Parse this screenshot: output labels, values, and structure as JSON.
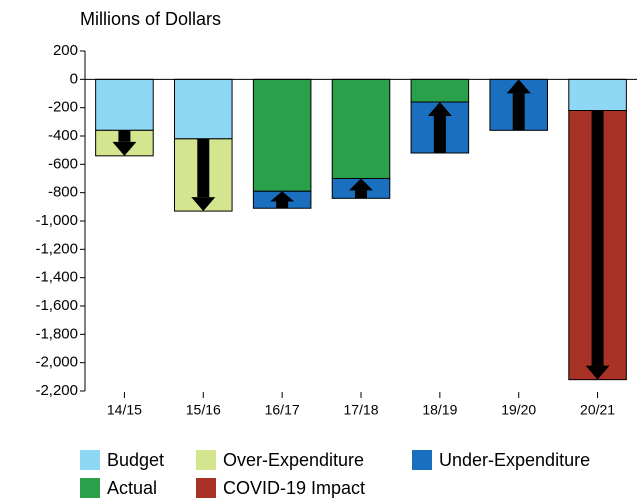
{
  "chart_data": {
    "type": "stacked_bar",
    "title": "Millions of Dollars",
    "categories": [
      "14/15",
      "15/16",
      "16/17",
      "17/18",
      "18/19",
      "19/20",
      "20/21"
    ],
    "series": [
      {
        "name": "Budget",
        "color": "#8fd8f5",
        "arrow": null,
        "values": [
          -360,
          -420,
          null,
          null,
          null,
          null,
          -220
        ]
      },
      {
        "name": "Actual",
        "color": "#2aa04a",
        "arrow": null,
        "values": [
          null,
          null,
          -790,
          -700,
          -160,
          null,
          null
        ]
      },
      {
        "name": "Over-Expenditure",
        "color": "#d3e58f",
        "arrow": "down",
        "values": [
          -180,
          -510,
          null,
          null,
          null,
          null,
          null
        ]
      },
      {
        "name": "Under-Expenditure",
        "color": "#1a6fbe",
        "arrow": "up",
        "values": [
          null,
          null,
          -120,
          -140,
          -360,
          -360,
          null
        ]
      },
      {
        "name": "COVID-19 Impact",
        "color": "#a93226",
        "arrow": "down",
        "values": [
          null,
          null,
          null,
          null,
          null,
          null,
          -1900
        ]
      }
    ],
    "ylim": [
      -2200,
      200
    ],
    "yticks": [
      200,
      0,
      -200,
      -400,
      -600,
      -800,
      {
        "value": -1000,
        "label": "-1,000"
      },
      {
        "value": -1200,
        "label": "-1,200"
      },
      {
        "value": -1400,
        "label": "-1,400"
      },
      {
        "value": -1600,
        "label": "-1,600"
      },
      {
        "value": -1800,
        "label": "-1,800"
      },
      {
        "value": -2000,
        "label": "-2,000"
      },
      {
        "value": -2200,
        "label": "-2,200"
      }
    ]
  }
}
